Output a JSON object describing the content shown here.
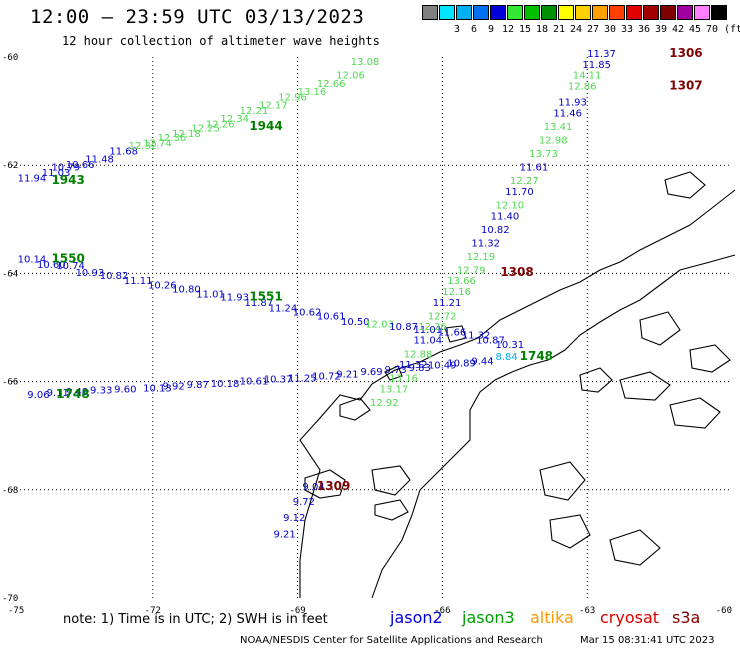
{
  "header": {
    "title": "12:00 – 23:59 UTC 03/13/2023",
    "subtitle": "12 hour collection of altimeter wave heights"
  },
  "legend": {
    "unit": "(ft)",
    "swatches": [
      {
        "label": "",
        "color": "#808080"
      },
      {
        "label": "3",
        "color": "#00e5ff"
      },
      {
        "label": "6",
        "color": "#00b0f0"
      },
      {
        "label": "9",
        "color": "#0070f0"
      },
      {
        "label": "12",
        "color": "#0000d8"
      },
      {
        "label": "15",
        "color": "#34e834"
      },
      {
        "label": "18",
        "color": "#00c000"
      },
      {
        "label": "21",
        "color": "#009000"
      },
      {
        "label": "24",
        "color": "#ffff00"
      },
      {
        "label": "27",
        "color": "#ffd000"
      },
      {
        "label": "30",
        "color": "#ffa000"
      },
      {
        "label": "33",
        "color": "#ff4000"
      },
      {
        "label": "36",
        "color": "#e00000"
      },
      {
        "label": "39",
        "color": "#a00000"
      },
      {
        "label": "42",
        "color": "#800000"
      },
      {
        "label": "45",
        "color": "#a000a0"
      },
      {
        "label": "70",
        "color": "#ff80ff"
      },
      {
        "label": "",
        "color": "#000000"
      }
    ]
  },
  "map": {
    "lon_ticks": [
      "-75",
      "-72",
      "-69",
      "-66",
      "-63",
      "-60"
    ],
    "lat_ticks": [
      "-60",
      "-62",
      "-64",
      "-66",
      "-68",
      "-70"
    ],
    "tracks": [
      {
        "name": "track-1943-1944",
        "color": "#50d850",
        "points": [
          {
            "lon": -74.8,
            "lat": -62.3,
            "v": "11.94",
            "c": "#0000cc"
          },
          {
            "lon": -74.3,
            "lat": -62.2,
            "v": "11.03",
            "c": "#0000cc"
          },
          {
            "lon": -74.1,
            "lat": -62.1,
            "v": "10.79",
            "c": "#0000cc"
          },
          {
            "lon": -73.8,
            "lat": -62.05,
            "v": "10.66",
            "c": "#0000cc"
          },
          {
            "lon": -73.4,
            "lat": -61.95,
            "v": "11.48",
            "c": "#0000cc"
          },
          {
            "lon": -72.9,
            "lat": -61.8,
            "v": "11.68",
            "c": "#0000cc"
          },
          {
            "lon": -72.5,
            "lat": -61.7,
            "v": "12.32",
            "c": "#50d850"
          },
          {
            "lon": -72.2,
            "lat": -61.65,
            "v": "12.74",
            "c": "#50d850"
          },
          {
            "lon": -71.9,
            "lat": -61.55,
            "v": "12.36",
            "c": "#50d850"
          },
          {
            "lon": -71.6,
            "lat": -61.48,
            "v": "12.18",
            "c": "#50d850"
          },
          {
            "lon": -71.2,
            "lat": -61.38,
            "v": "12.25",
            "c": "#50d850"
          },
          {
            "lon": -70.9,
            "lat": -61.3,
            "v": "12.26",
            "c": "#50d850"
          },
          {
            "lon": -70.6,
            "lat": -61.2,
            "v": "12.34",
            "c": "#50d850"
          },
          {
            "lon": -70.2,
            "lat": -61.05,
            "v": "12.21",
            "c": "#50d850"
          },
          {
            "lon": -69.8,
            "lat": -60.95,
            "v": "12.17",
            "c": "#50d850"
          },
          {
            "lon": -69.4,
            "lat": -60.8,
            "v": "12.96",
            "c": "#50d850"
          },
          {
            "lon": -69.0,
            "lat": -60.7,
            "v": "13.16",
            "c": "#50d850"
          },
          {
            "lon": -68.6,
            "lat": -60.55,
            "v": "12.66",
            "c": "#50d850"
          },
          {
            "lon": -68.2,
            "lat": -60.4,
            "v": "12.06",
            "c": "#50d850"
          },
          {
            "lon": -67.9,
            "lat": -60.15,
            "v": "13.08",
            "c": "#50d850"
          }
        ]
      },
      {
        "name": "track-1550-1551",
        "color": "#0000cc",
        "points": [
          {
            "lon": -74.8,
            "lat": -63.8,
            "v": "10.14",
            "c": "#0000cc"
          },
          {
            "lon": -74.4,
            "lat": -63.9,
            "v": "10.60",
            "c": "#0000cc"
          },
          {
            "lon": -74.0,
            "lat": -63.92,
            "v": "10.74",
            "c": "#0000cc"
          },
          {
            "lon": -73.6,
            "lat": -64.05,
            "v": "10.93",
            "c": "#0000cc"
          },
          {
            "lon": -73.1,
            "lat": -64.1,
            "v": "10.82",
            "c": "#0000cc"
          },
          {
            "lon": -72.6,
            "lat": -64.2,
            "v": "11.11",
            "c": "#0000cc"
          },
          {
            "lon": -72.1,
            "lat": -64.28,
            "v": "10.26",
            "c": "#0000cc"
          },
          {
            "lon": -71.6,
            "lat": -64.35,
            "v": "10.80",
            "c": "#0000cc"
          },
          {
            "lon": -71.1,
            "lat": -64.45,
            "v": "11.01",
            "c": "#0000cc"
          },
          {
            "lon": -70.6,
            "lat": -64.5,
            "v": "11.93",
            "c": "#0000cc"
          },
          {
            "lon": -70.1,
            "lat": -64.6,
            "v": "11.87",
            "c": "#0000cc"
          },
          {
            "lon": -69.6,
            "lat": -64.7,
            "v": "11.24",
            "c": "#0000cc"
          },
          {
            "lon": -69.1,
            "lat": -64.78,
            "v": "10.62",
            "c": "#0000cc"
          },
          {
            "lon": -68.6,
            "lat": -64.85,
            "v": "10.61",
            "c": "#0000cc"
          },
          {
            "lon": -68.1,
            "lat": -64.95,
            "v": "10.50",
            "c": "#0000cc"
          },
          {
            "lon": -67.6,
            "lat": -65.0,
            "v": "12.03",
            "c": "#50d850"
          },
          {
            "lon": -67.1,
            "lat": -65.05,
            "v": "10.87",
            "c": "#0000cc"
          },
          {
            "lon": -66.6,
            "lat": -65.1,
            "v": "11.01",
            "c": "#0000cc"
          },
          {
            "lon": -66.1,
            "lat": -65.15,
            "v": "11.66",
            "c": "#0000cc"
          },
          {
            "lon": -65.6,
            "lat": -65.2,
            "v": "11.32",
            "c": "#0000cc"
          },
          {
            "lon": -65.3,
            "lat": -65.3,
            "v": "10.87",
            "c": "#0000cc"
          },
          {
            "lon": -64.9,
            "lat": -65.38,
            "v": "10.31",
            "c": "#0000cc"
          }
        ]
      },
      {
        "name": "track-1748",
        "color": "#0000cc",
        "points": [
          {
            "lon": -74.6,
            "lat": -66.3,
            "v": "9.06",
            "c": "#0000cc"
          },
          {
            "lon": -74.2,
            "lat": -66.27,
            "v": "9.11",
            "c": "#0000cc"
          },
          {
            "lon": -73.8,
            "lat": -66.25,
            "v": "9.48",
            "c": "#0000cc"
          },
          {
            "lon": -73.3,
            "lat": -66.22,
            "v": "9.33",
            "c": "#0000cc"
          },
          {
            "lon": -72.8,
            "lat": -66.2,
            "v": "9.60",
            "c": "#0000cc"
          },
          {
            "lon": -72.2,
            "lat": -66.18,
            "v": "10.13",
            "c": "#0000cc"
          },
          {
            "lon": -71.8,
            "lat": -66.15,
            "v": "9.92",
            "c": "#0000cc"
          },
          {
            "lon": -71.3,
            "lat": -66.12,
            "v": "9.87",
            "c": "#0000cc"
          },
          {
            "lon": -70.8,
            "lat": -66.1,
            "v": "10.18",
            "c": "#0000cc"
          },
          {
            "lon": -70.2,
            "lat": -66.05,
            "v": "10.61",
            "c": "#0000cc"
          },
          {
            "lon": -69.7,
            "lat": -66.02,
            "v": "10.37",
            "c": "#0000cc"
          },
          {
            "lon": -69.2,
            "lat": -66.0,
            "v": "11.25",
            "c": "#0000cc"
          },
          {
            "lon": -68.7,
            "lat": -65.96,
            "v": "10.72",
            "c": "#0000cc"
          },
          {
            "lon": -68.2,
            "lat": -65.92,
            "v": "9.21",
            "c": "#0000cc"
          },
          {
            "lon": -67.7,
            "lat": -65.88,
            "v": "9.69",
            "c": "#0000cc"
          },
          {
            "lon": -67.2,
            "lat": -65.84,
            "v": "9.73",
            "c": "#0000cc"
          },
          {
            "lon": -66.7,
            "lat": -65.8,
            "v": "9.83",
            "c": "#0000cc"
          },
          {
            "lon": -66.3,
            "lat": -65.76,
            "v": "10.49",
            "c": "#0000cc"
          },
          {
            "lon": -65.9,
            "lat": -65.72,
            "v": "10.89",
            "c": "#0000cc"
          },
          {
            "lon": -65.4,
            "lat": -65.68,
            "v": "9.44",
            "c": "#0000cc"
          },
          {
            "lon": -64.9,
            "lat": -65.6,
            "v": "8.84",
            "c": "#00b0f0"
          }
        ]
      },
      {
        "name": "track-1307-1308",
        "color": "#50d850",
        "points": [
          {
            "lon": -63.0,
            "lat": -60.0,
            "v": "11.37",
            "c": "#0000cc"
          },
          {
            "lon": -63.1,
            "lat": -60.2,
            "v": "11.85",
            "c": "#0000cc"
          },
          {
            "lon": -63.3,
            "lat": -60.4,
            "v": "14.11",
            "c": "#50d850"
          },
          {
            "lon": -63.4,
            "lat": -60.6,
            "v": "12.86",
            "c": "#50d850"
          },
          {
            "lon": -63.6,
            "lat": -60.9,
            "v": "11.93",
            "c": "#0000cc"
          },
          {
            "lon": -63.7,
            "lat": -61.1,
            "v": "11.46",
            "c": "#0000cc"
          },
          {
            "lon": -63.9,
            "lat": -61.35,
            "v": "13.41",
            "c": "#50d850"
          },
          {
            "lon": -64.0,
            "lat": -61.6,
            "v": "12.98",
            "c": "#50d850"
          },
          {
            "lon": -64.2,
            "lat": -61.85,
            "v": "13.73",
            "c": "#50d850"
          },
          {
            "lon": -64.4,
            "lat": -62.1,
            "v": "11.61",
            "c": "#0000cc"
          },
          {
            "lon": -64.6,
            "lat": -62.35,
            "v": "12.27",
            "c": "#50d850"
          },
          {
            "lon": -64.7,
            "lat": -62.55,
            "v": "11.70",
            "c": "#0000cc"
          },
          {
            "lon": -64.9,
            "lat": -62.8,
            "v": "12.10",
            "c": "#50d850"
          },
          {
            "lon": -65.0,
            "lat": -63.0,
            "v": "11.40",
            "c": "#0000cc"
          },
          {
            "lon": -65.2,
            "lat": -63.25,
            "v": "10.82",
            "c": "#0000cc"
          },
          {
            "lon": -65.4,
            "lat": -63.5,
            "v": "11.32",
            "c": "#0000cc"
          },
          {
            "lon": -65.5,
            "lat": -63.75,
            "v": "12.19",
            "c": "#50d850"
          },
          {
            "lon": -65.7,
            "lat": -64.0,
            "v": "12.79",
            "c": "#50d850"
          },
          {
            "lon": -65.9,
            "lat": -64.2,
            "v": "13.66",
            "c": "#50d850"
          },
          {
            "lon": -66.0,
            "lat": -64.4,
            "v": "12.16",
            "c": "#50d850"
          },
          {
            "lon": -66.2,
            "lat": -64.6,
            "v": "11.21",
            "c": "#0000cc"
          },
          {
            "lon": -66.3,
            "lat": -64.85,
            "v": "12.72",
            "c": "#50d850"
          },
          {
            "lon": -66.5,
            "lat": -65.05,
            "v": "12.26",
            "c": "#50d850"
          },
          {
            "lon": -66.6,
            "lat": -65.3,
            "v": "11.04",
            "c": "#0000cc"
          },
          {
            "lon": -66.8,
            "lat": -65.55,
            "v": "12.88",
            "c": "#50d850"
          },
          {
            "lon": -66.9,
            "lat": -65.75,
            "v": "11.32",
            "c": "#0000cc"
          },
          {
            "lon": -67.1,
            "lat": -66.0,
            "v": "13.16",
            "c": "#50d850"
          },
          {
            "lon": -67.3,
            "lat": -66.2,
            "v": "13.17",
            "c": "#50d850"
          },
          {
            "lon": -67.5,
            "lat": -66.45,
            "v": "12.92",
            "c": "#50d850"
          }
        ]
      },
      {
        "name": "track-1309",
        "color": "#0000cc",
        "points": [
          {
            "lon": -68.9,
            "lat": -68.0,
            "v": "9.04",
            "c": "#0000cc"
          },
          {
            "lon": -69.1,
            "lat": -68.28,
            "v": "9.72",
            "c": "#0000cc"
          },
          {
            "lon": -69.3,
            "lat": -68.58,
            "v": "9.12",
            "c": "#0000cc"
          },
          {
            "lon": -69.5,
            "lat": -68.88,
            "v": "9.21",
            "c": "#0000cc"
          }
        ]
      }
    ],
    "time_labels": [
      {
        "lon": -74.1,
        "lat": -62.35,
        "t": "1943",
        "c": "#008000"
      },
      {
        "lon": -70.0,
        "lat": -61.35,
        "t": "1944",
        "c": "#008000"
      },
      {
        "lon": -74.1,
        "lat": -63.8,
        "t": "1550",
        "c": "#008000"
      },
      {
        "lon": -70.0,
        "lat": -64.5,
        "t": "1551",
        "c": "#008000"
      },
      {
        "lon": -74.0,
        "lat": -66.3,
        "t": "1748",
        "c": "#008000"
      },
      {
        "lon": -64.4,
        "lat": -65.6,
        "t": "1748",
        "c": "#008000"
      },
      {
        "lon": -61.3,
        "lat": -60.0,
        "t": "1306",
        "c": "#800000"
      },
      {
        "lon": -61.3,
        "lat": -60.6,
        "t": "1307",
        "c": "#800000"
      },
      {
        "lon": -64.8,
        "lat": -64.05,
        "t": "1308",
        "c": "#800000"
      },
      {
        "lon": -68.6,
        "lat": -68.0,
        "t": "1309",
        "c": "#800000"
      }
    ]
  },
  "footer": {
    "note": "note: 1) Time is in UTC; 2) SWH is in feet",
    "satellites": [
      {
        "label": "jason2",
        "color": "#0000d8"
      },
      {
        "label": "jason3",
        "color": "#00a000"
      },
      {
        "label": "altika",
        "color": "#ff9900"
      },
      {
        "label": "cryosat",
        "color": "#e00000"
      },
      {
        "label": "s3a",
        "color": "#800000"
      }
    ],
    "credit": "NOAA/NESDIS Center for Satellite Applications and Research",
    "timestamp": "Mar 15 08:31:41 UTC 2023"
  }
}
